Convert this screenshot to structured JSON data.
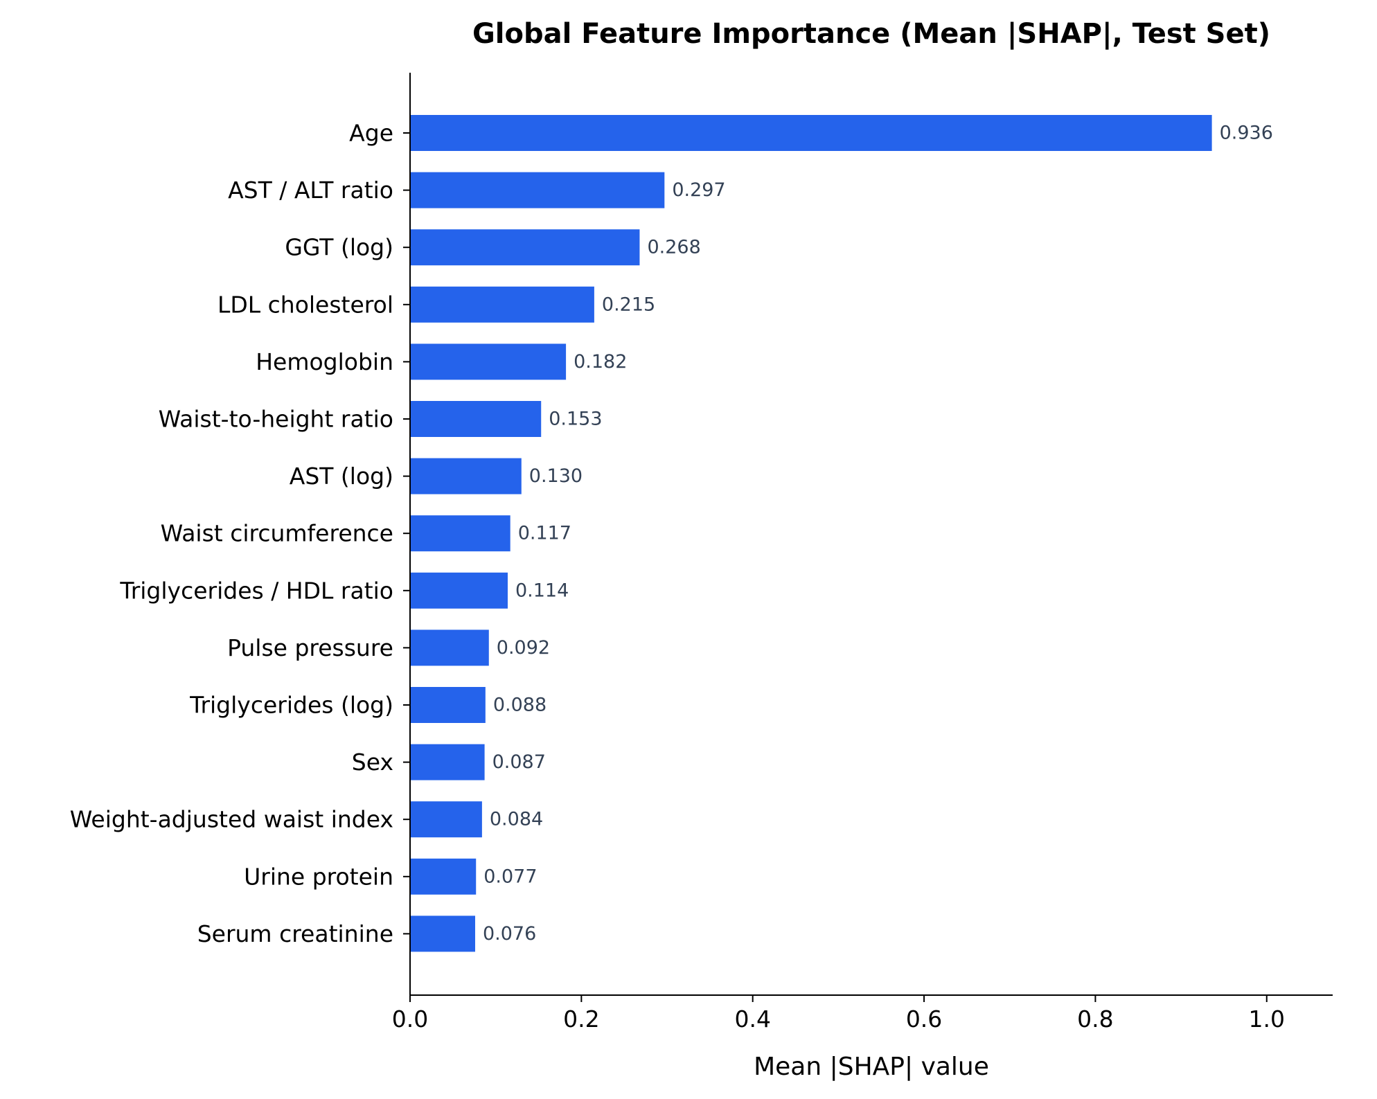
{
  "chart_data": {
    "type": "bar",
    "orientation": "horizontal",
    "title": "Global Feature Importance (Mean |SHAP|, Test Set)",
    "xlabel": "Mean |SHAP| value",
    "ylabel": "",
    "xlim": [
      0,
      1.077
    ],
    "xticks": [
      0.0,
      0.2,
      0.4,
      0.6,
      0.8,
      1.0
    ],
    "xtick_labels": [
      "0.0",
      "0.2",
      "0.4",
      "0.6",
      "0.8",
      "1.0"
    ],
    "grid": false,
    "bar_color": "#2563eb",
    "value_label_color": "#334155",
    "categories": [
      "Age",
      "AST / ALT ratio",
      "GGT (log)",
      "LDL cholesterol",
      "Hemoglobin",
      "Waist-to-height ratio",
      "AST (log)",
      "Waist circumference",
      "Triglycerides / HDL ratio",
      "Pulse pressure",
      "Triglycerides (log)",
      "Sex",
      "Weight-adjusted waist index",
      "Urine protein",
      "Serum creatinine"
    ],
    "values": [
      0.936,
      0.297,
      0.268,
      0.215,
      0.182,
      0.153,
      0.13,
      0.117,
      0.114,
      0.092,
      0.088,
      0.087,
      0.084,
      0.077,
      0.076
    ],
    "value_labels": [
      "0.936",
      "0.297",
      "0.268",
      "0.215",
      "0.182",
      "0.153",
      "0.130",
      "0.117",
      "0.114",
      "0.092",
      "0.088",
      "0.087",
      "0.084",
      "0.077",
      "0.076"
    ]
  }
}
